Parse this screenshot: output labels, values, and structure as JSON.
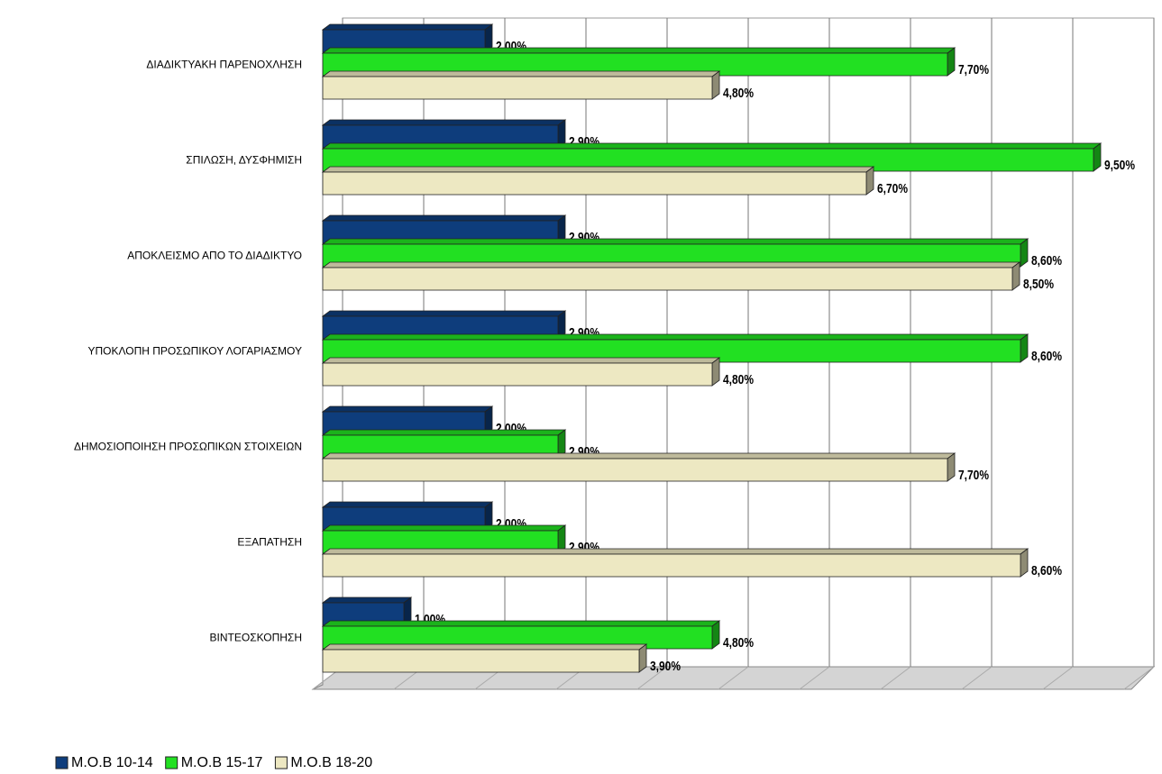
{
  "chart_data": {
    "type": "bar",
    "orientation": "horizontal",
    "categories": [
      "ΔΙΑΔΙΚΤΥΑΚΗ ΠΑΡΕΝΟΧΛΗΣΗ",
      "ΣΠΙΛΩΣΗ, ΔΥΣΦΗΜΙΣΗ",
      "ΑΠΟΚΛΕΙΣΜΟ ΑΠΟ ΤΟ ΔΙΑΔΙΚΤΥΟ",
      "ΥΠΟΚΛΟΠΗ ΠΡΟΣΩΠΙΚΟΥ ΛΟΓΑΡΙΑΣΜΟΥ",
      "ΔΗΜΟΣΙΟΠΟΙΗΣΗ ΠΡΟΣΩΠΙΚΩΝ ΣΤΟΙΧΕΙΩΝ",
      "ΕΞΑΠΑΤΗΣΗ",
      "ΒΙΝΤΕΟΣΚΟΠΗΣΗ"
    ],
    "series": [
      {
        "name": "Μ.Ο.Β 10-14",
        "color": "#0e3d7c",
        "values": [
          2.0,
          2.9,
          2.9,
          2.9,
          2.0,
          2.0,
          1.0
        ],
        "value_labels": [
          "2,00%",
          "2,90%",
          "2,90%",
          "2,90%",
          "2,00%",
          "2,00%",
          "1,00%"
        ]
      },
      {
        "name": "Μ.Ο.Β 15-17",
        "color": "#22e022",
        "values": [
          7.7,
          9.5,
          8.6,
          8.6,
          2.9,
          2.9,
          4.8
        ],
        "value_labels": [
          "7,70%",
          "9,50%",
          "8,60%",
          "8,60%",
          "2,90%",
          "2,90%",
          "4,80%"
        ]
      },
      {
        "name": "Μ.Ο.Β 18-20",
        "color": "#ede8c2",
        "values": [
          4.8,
          6.7,
          8.5,
          4.8,
          7.7,
          8.6,
          3.9
        ],
        "value_labels": [
          "4,80%",
          "6,70%",
          "8,50%",
          "4,80%",
          "7,70%",
          "8,60%",
          "3,90%"
        ]
      }
    ],
    "xlim": [
      0,
      10
    ],
    "xticks": [
      0,
      1,
      2,
      3,
      4,
      5,
      6,
      7,
      8,
      9,
      10
    ],
    "grid": true,
    "legend": "bottom-left"
  }
}
